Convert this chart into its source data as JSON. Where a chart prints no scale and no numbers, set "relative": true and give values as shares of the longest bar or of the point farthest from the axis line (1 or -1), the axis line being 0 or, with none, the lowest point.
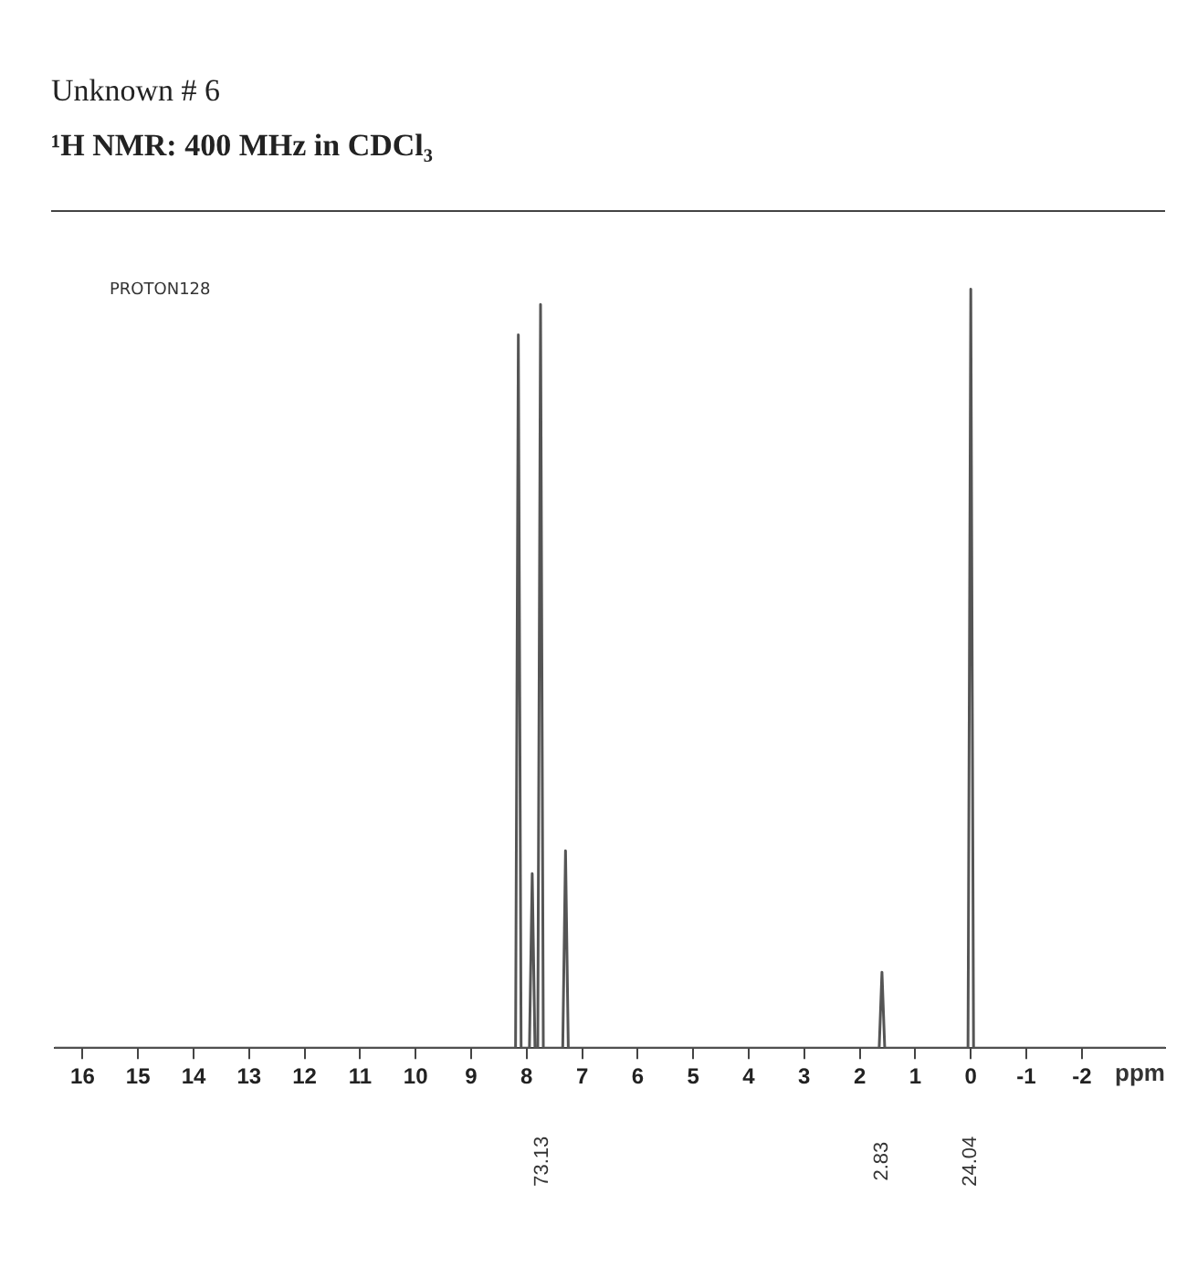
{
  "chart_data": {
    "type": "line",
    "title": "Unknown # 6",
    "subtitle": "¹H NMR: 400 MHz in CDCl₃",
    "xlabel": "ppm",
    "relative": true,
    "xlim": [
      16.5,
      -3.5
    ],
    "xticks": [
      16,
      15,
      14,
      13,
      12,
      11,
      10,
      9,
      8,
      7,
      6,
      5,
      4,
      3,
      2,
      1,
      0,
      -1,
      -2
    ],
    "annotations": [
      "PROTON128",
      "73.13",
      "2.83",
      "24.04"
    ],
    "series": [
      {
        "color": "#555555",
        "x": [
          16.5,
          8.2,
          8.15,
          8.1,
          7.95,
          7.9,
          7.85,
          7.8,
          7.75,
          7.7,
          7.35,
          7.3,
          7.25,
          1.65,
          1.6,
          1.55,
          0.05,
          0,
          -0.05,
          -3.5
        ],
        "values": [
          0,
          0,
          0.94,
          0,
          0,
          0.23,
          0,
          0,
          0.98,
          0,
          0,
          0.26,
          0,
          0,
          0.1,
          0,
          0,
          1,
          0,
          0
        ]
      }
    ]
  }
}
